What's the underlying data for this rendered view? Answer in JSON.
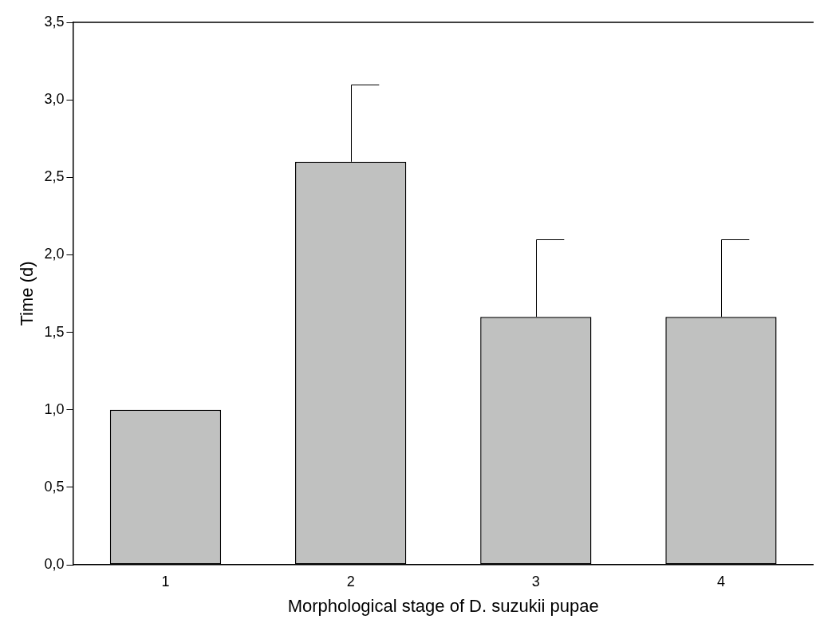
{
  "chart_data": {
    "type": "bar",
    "xlabel": "Morphological stage of D. suzukii pupae",
    "ylabel": "Time (d)",
    "categories": [
      "1",
      "2",
      "3",
      "4"
    ],
    "values": [
      1.0,
      2.6,
      1.6,
      1.6
    ],
    "errors": [
      null,
      0.5,
      0.5,
      0.5
    ],
    "color": "#c0c1c0",
    "ylim": [
      0,
      3.5
    ],
    "yticks": [
      {
        "value": 0,
        "label": "0,0"
      },
      {
        "value": 0.5,
        "label": "0,5"
      },
      {
        "value": 1,
        "label": "1,0"
      },
      {
        "value": 1.5,
        "label": "1,5"
      },
      {
        "value": 2,
        "label": "2,0"
      },
      {
        "value": 2.5,
        "label": "2,5"
      },
      {
        "value": 3,
        "label": "3,0"
      },
      {
        "value": 3.5,
        "label": "3,5"
      }
    ],
    "grid": false,
    "legend": false
  }
}
